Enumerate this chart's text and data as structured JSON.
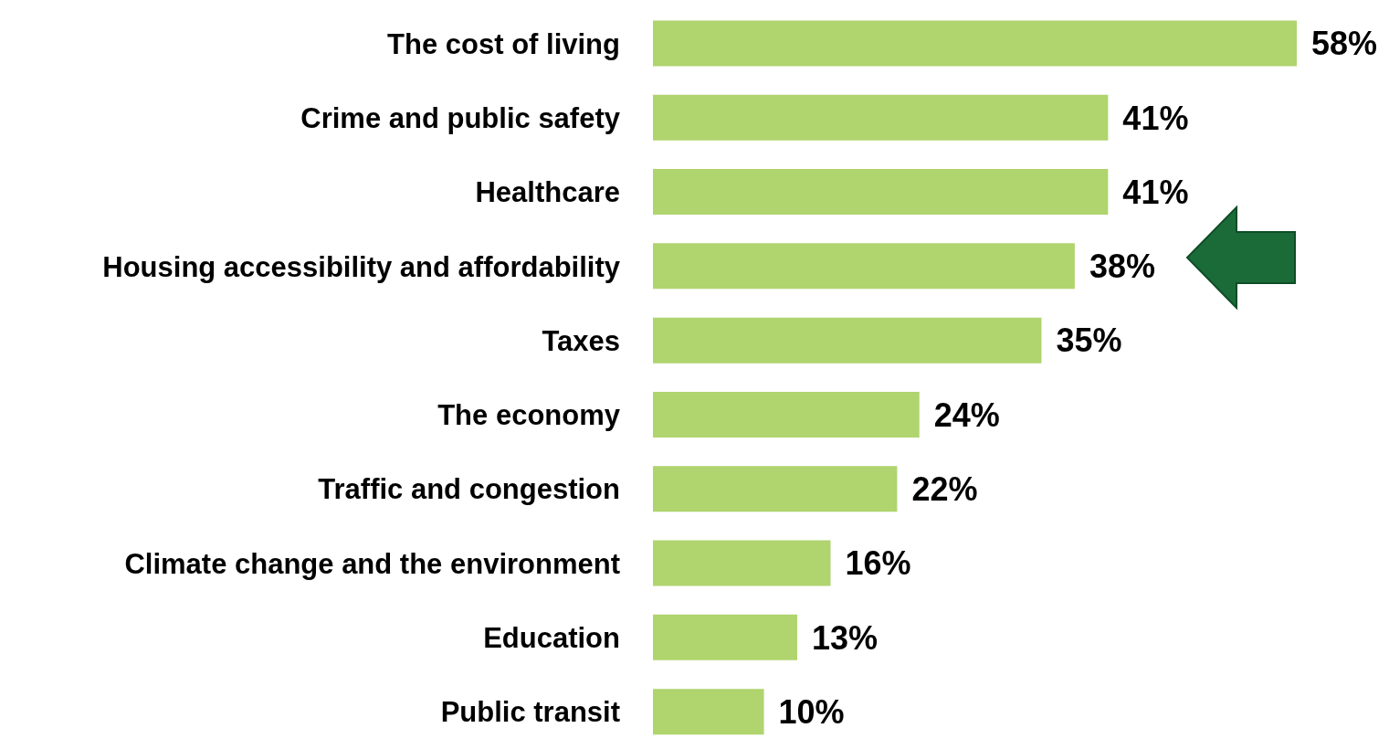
{
  "chart_data": {
    "type": "bar",
    "orientation": "horizontal",
    "categories": [
      "The cost of living",
      "Crime and public safety",
      "Healthcare",
      "Housing accessibility and affordability",
      "Taxes",
      "The economy",
      "Traffic and congestion",
      "Climate change and the environment",
      "Education",
      "Public transit"
    ],
    "values": [
      58,
      41,
      41,
      38,
      35,
      24,
      22,
      16,
      13,
      10
    ],
    "value_labels": [
      "58%",
      "41%",
      "41%",
      "38%",
      "35%",
      "24%",
      "22%",
      "16%",
      "13%",
      "10%"
    ],
    "color": "#b0d46e",
    "grid": false,
    "legend": false
  }
}
